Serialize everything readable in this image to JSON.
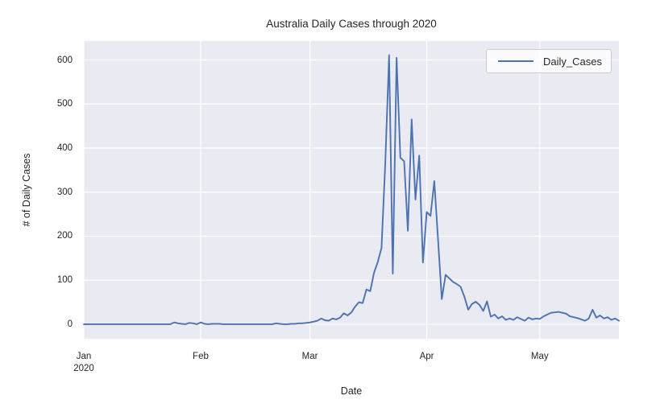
{
  "figure": {
    "background": "#ffffff",
    "plot_background": "#eaeaf2",
    "grid_color": "#ffffff",
    "text_color": "#262626",
    "legend_border": "#cccccc"
  },
  "legend": {
    "label": "Daily_Cases",
    "line_color": "#4c72b0",
    "position": "upper right"
  },
  "chart_data": {
    "type": "line",
    "title": "Australia Daily Cases through 2020",
    "xlabel": "Date",
    "ylabel": "# of Daily Cases",
    "x_start": "2020-01-01",
    "x_unit": "day",
    "xlim_days": [
      0,
      142
    ],
    "ylim": [
      -33,
      643
    ],
    "grid": true,
    "y_ticks": [
      0,
      100,
      200,
      300,
      400,
      500,
      600
    ],
    "x_ticks": [
      {
        "day": 0,
        "label": "Jan",
        "sublabel": "2020"
      },
      {
        "day": 31,
        "label": "Feb",
        "sublabel": ""
      },
      {
        "day": 60,
        "label": "Mar",
        "sublabel": ""
      },
      {
        "day": 91,
        "label": "Apr",
        "sublabel": ""
      },
      {
        "day": 121,
        "label": "May",
        "sublabel": ""
      }
    ],
    "series": [
      {
        "name": "Daily_Cases",
        "color": "#4c72b0",
        "values": [
          0,
          0,
          0,
          0,
          0,
          0,
          0,
          0,
          0,
          0,
          0,
          0,
          0,
          0,
          0,
          0,
          0,
          0,
          0,
          0,
          0,
          0,
          0,
          0,
          4,
          2,
          1,
          0,
          3,
          2,
          0,
          4,
          1,
          0,
          1,
          1,
          1,
          0,
          0,
          0,
          0,
          0,
          0,
          0,
          0,
          0,
          0,
          0,
          0,
          0,
          0,
          2,
          1,
          0,
          0,
          1,
          1,
          2,
          2,
          3,
          4,
          6,
          8,
          13,
          9,
          8,
          13,
          11,
          15,
          25,
          20,
          27,
          40,
          50,
          48,
          79,
          75,
          117,
          141,
          173,
          367,
          611,
          115,
          605,
          378,
          370,
          212,
          465,
          283,
          383,
          140,
          255,
          246,
          325,
          194,
          57,
          112,
          104,
          96,
          91,
          85,
          62,
          33,
          46,
          51,
          44,
          30,
          52,
          17,
          22,
          13,
          18,
          10,
          13,
          10,
          16,
          12,
          8,
          15,
          11,
          13,
          12,
          18,
          22,
          26,
          27,
          28,
          26,
          24,
          18,
          16,
          14,
          11,
          8,
          13,
          33,
          15,
          20,
          13,
          16,
          10,
          13,
          8
        ]
      }
    ]
  }
}
